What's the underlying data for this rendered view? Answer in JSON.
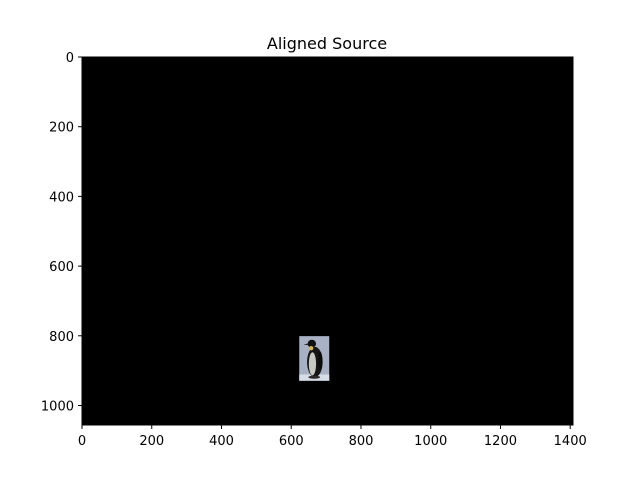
{
  "chart_data": {
    "type": "image",
    "title": "Aligned Source",
    "xlabel": "",
    "ylabel": "",
    "xlim": [
      0,
      1408
    ],
    "ylim": [
      1056,
      0
    ],
    "y_axis_inverted": true,
    "grid": false,
    "background_color": "#000000",
    "x_ticks": [
      0,
      200,
      400,
      600,
      800,
      1000,
      1200,
      1400
    ],
    "x_tick_labels": [
      "0",
      "200",
      "400",
      "600",
      "800",
      "1000",
      "1200",
      "1400"
    ],
    "y_ticks": [
      0,
      200,
      400,
      600,
      800,
      1000
    ],
    "y_tick_labels": [
      "0",
      "200",
      "400",
      "600",
      "800",
      "1000"
    ],
    "content_patch": {
      "description": "aligned photo of a penguin",
      "x_range": [
        623,
        709
      ],
      "y_range": [
        801,
        929
      ],
      "background_color": "#a8b2c4"
    }
  }
}
